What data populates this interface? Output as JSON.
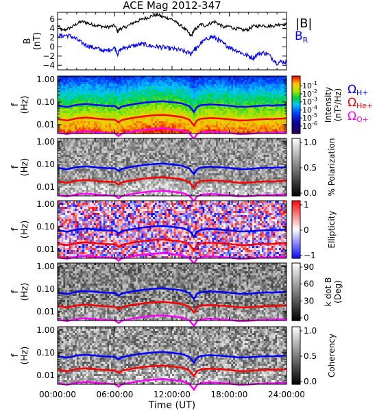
{
  "chart_data": {
    "type": "spectrogram",
    "title": "ACE Mag 2012-347",
    "x_axis": {
      "label": "Time (UT)",
      "unit": "hours",
      "range": [
        0,
        24
      ],
      "ticks": [
        "00:00:00",
        "06:00:00",
        "12:00:00",
        "18:00:00",
        "24:00:00"
      ],
      "tick_values": [
        0,
        6,
        12,
        18,
        24
      ]
    },
    "panels": [
      {
        "id": "field",
        "type": "line",
        "ylabel": "B",
        "yunit": "(nT)",
        "ylim": [
          -5,
          7.5
        ],
        "yticks": [
          -4,
          -2,
          0,
          2,
          4,
          6
        ],
        "series": [
          {
            "name": "|B|",
            "color": "#000000",
            "x": [
              0,
              0.5,
              1,
              1.5,
              2,
              2.5,
              3,
              3.5,
              4,
              4.5,
              5,
              5.5,
              6,
              6.3,
              6.6,
              7,
              7.5,
              8,
              8.5,
              9,
              9.5,
              10,
              10.5,
              11,
              11.5,
              12,
              12.5,
              13,
              13.5,
              14,
              14.3,
              14.6,
              15,
              15.5,
              16,
              16.5,
              17,
              17.5,
              18,
              18.5,
              19,
              19.5,
              20,
              20.5,
              21,
              21.5,
              22,
              22.5,
              23,
              23.5,
              24
            ],
            "y": [
              4.7,
              3.5,
              3.9,
              4.3,
              5.0,
              5.5,
              5.3,
              4.9,
              4.7,
              4.5,
              4.3,
              4.4,
              4.6,
              3.3,
              4.0,
              4.2,
              4.7,
              5.3,
              5.7,
              6.1,
              6.4,
              6.8,
              7.0,
              6.5,
              6.3,
              6.0,
              5.2,
              4.5,
              3.6,
              2.3,
              3.6,
              4.1,
              4.9,
              4.6,
              5.1,
              5.5,
              4.8,
              4.2,
              4.5,
              4.0,
              3.9,
              3.6,
              3.8,
              4.5,
              4.5,
              4.7,
              4.5,
              4.5,
              4.8,
              5.0,
              4.8
            ]
          },
          {
            "name": "B_R",
            "color": "#0000ff",
            "x": [
              0,
              0.5,
              1,
              1.5,
              2,
              2.5,
              3,
              3.5,
              4,
              4.5,
              5,
              5.5,
              6,
              6.3,
              6.6,
              7,
              7.5,
              8,
              8.5,
              9,
              9.5,
              10,
              10.5,
              11,
              11.5,
              12,
              12.5,
              13,
              13.5,
              14,
              14.3,
              14.6,
              15,
              15.5,
              16,
              16.5,
              17,
              17.5,
              18,
              18.5,
              19,
              19.5,
              20,
              20.5,
              21,
              21.5,
              22,
              22.5,
              23,
              23.5,
              24
            ],
            "y": [
              2.5,
              2.4,
              2.5,
              2.2,
              1.6,
              0.9,
              0.4,
              0.0,
              -0.3,
              -0.6,
              -0.9,
              -0.6,
              -0.2,
              -1.5,
              -0.6,
              -0.2,
              0.1,
              0.2,
              0.5,
              0.6,
              0.3,
              0.1,
              0.0,
              -0.1,
              -0.3,
              -0.4,
              -0.6,
              -0.8,
              -1.2,
              -1.5,
              -0.5,
              -0.4,
              0.8,
              1.5,
              2.2,
              2.0,
              1.3,
              0.5,
              0.0,
              -0.6,
              -1.0,
              -1.6,
              -2.0,
              -2.4,
              -1.6,
              -1.3,
              -1.5,
              -2.5,
              -3.5,
              -3.2,
              -3.3
            ]
          }
        ],
        "legend": [
          {
            "label": "|B|",
            "color": "#000000"
          },
          {
            "label": "B",
            "sub": "R",
            "color": "#0000ff"
          }
        ]
      },
      {
        "id": "intensity",
        "type": "heatmap",
        "ylabel": "f",
        "yunit": "(Hz)",
        "colormap": "rainbow",
        "colorbar": {
          "label": "Intensity",
          "unit": "(nT²/Hz)",
          "scale": "log",
          "ticks": [
            {
              "base": "10",
              "exp": "-1"
            },
            {
              "base": "10",
              "exp": "-2"
            },
            {
              "base": "10",
              "exp": "-3"
            },
            {
              "base": "10",
              "exp": "-4"
            },
            {
              "base": "10",
              "exp": "-5"
            },
            {
              "base": "10",
              "exp": "-6"
            }
          ]
        },
        "side_labels": [
          {
            "symbol": "Ω",
            "sub": "H+",
            "color": "#0000ff"
          },
          {
            "symbol": "Ω",
            "sub": "He+",
            "color": "#ff0000"
          },
          {
            "symbol": "Ω",
            "sub": "O+",
            "color": "#ff00ff"
          }
        ]
      },
      {
        "id": "polarization",
        "type": "heatmap",
        "ylabel": "f",
        "yunit": "(Hz)",
        "colormap": "gray",
        "colorbar": {
          "label": "% Polarization",
          "unit": "",
          "ticks": [
            "1.0",
            "0.5",
            "0.0"
          ]
        }
      },
      {
        "id": "ellipticity",
        "type": "heatmap",
        "ylabel": "f",
        "yunit": "(Hz)",
        "colormap": "bwr",
        "colorbar": {
          "label": "Ellipticity",
          "unit": "",
          "ticks": [
            "1",
            "0",
            "−1"
          ]
        }
      },
      {
        "id": "kdotb",
        "type": "heatmap",
        "ylabel": "f",
        "yunit": "(Hz)",
        "colormap": "gray",
        "colorbar": {
          "label": "k dot B",
          "unit": "(Deg)",
          "ticks": [
            "90",
            "60",
            "30",
            "0"
          ]
        }
      },
      {
        "id": "coherency",
        "type": "heatmap",
        "ylabel": "f",
        "yunit": "(Hz)",
        "colormap": "gray",
        "colorbar": {
          "label": "Coherency",
          "unit": "",
          "ticks": [
            "1.0",
            "0.5",
            "0.0"
          ]
        }
      }
    ],
    "freq_axis": {
      "scale": "log",
      "range": [
        0.004,
        1.4
      ],
      "ticks": [
        "1.00",
        "0.10",
        "0.01"
      ],
      "tick_values": [
        1.0,
        0.1,
        0.01
      ]
    },
    "gyrofrequency_lines": [
      {
        "name": "Ω_H+",
        "color": "#0000ff",
        "x": [
          0,
          1,
          2,
          3,
          4,
          5,
          6,
          6.4,
          6.7,
          7,
          8,
          9,
          10,
          11,
          12,
          13,
          13.8,
          14.3,
          14.6,
          15,
          16,
          17,
          18,
          19,
          20,
          21,
          22,
          22.5,
          23,
          24
        ],
        "y": [
          0.07,
          0.06,
          0.075,
          0.082,
          0.074,
          0.068,
          0.066,
          0.05,
          0.062,
          0.067,
          0.08,
          0.092,
          0.102,
          0.108,
          0.098,
          0.087,
          0.066,
          0.036,
          0.06,
          0.072,
          0.078,
          0.074,
          0.069,
          0.061,
          0.062,
          0.067,
          0.071,
          0.069,
          0.072,
          0.074
        ]
      },
      {
        "name": "Ω_He+",
        "color": "#ff0000",
        "x": [
          0,
          1,
          2,
          3,
          4,
          5,
          6,
          6.4,
          6.7,
          7,
          8,
          9,
          10,
          11,
          12,
          13,
          13.8,
          14.3,
          14.6,
          15,
          16,
          17,
          18,
          19,
          20,
          21,
          22,
          22.5,
          23,
          24
        ],
        "y": [
          0.0175,
          0.015,
          0.0188,
          0.0205,
          0.0185,
          0.017,
          0.0165,
          0.0125,
          0.0155,
          0.0168,
          0.02,
          0.023,
          0.0255,
          0.027,
          0.0245,
          0.0218,
          0.0165,
          0.009,
          0.015,
          0.018,
          0.0195,
          0.0185,
          0.0172,
          0.0152,
          0.0155,
          0.0168,
          0.0178,
          0.0172,
          0.018,
          0.0185
        ]
      },
      {
        "name": "Ω_O+",
        "color": "#ff00ff",
        "x": [
          0,
          1,
          2,
          3,
          4,
          5,
          6,
          6.4,
          6.7,
          7,
          8,
          9,
          10,
          11,
          12,
          13,
          13.8,
          14.3,
          14.6,
          15,
          16,
          17,
          18,
          19,
          20,
          21,
          22,
          22.5,
          23,
          24
        ],
        "y": [
          0.0044,
          0.0038,
          0.0047,
          0.0051,
          0.0046,
          0.0043,
          0.0041,
          0.0031,
          0.0039,
          0.0042,
          0.005,
          0.0058,
          0.0064,
          0.0068,
          0.0061,
          0.0055,
          0.0041,
          0.0023,
          0.0038,
          0.0045,
          0.0049,
          0.0046,
          0.0043,
          0.0038,
          0.0039,
          0.0042,
          0.0044,
          0.0043,
          0.0045,
          0.0046
        ]
      }
    ]
  }
}
